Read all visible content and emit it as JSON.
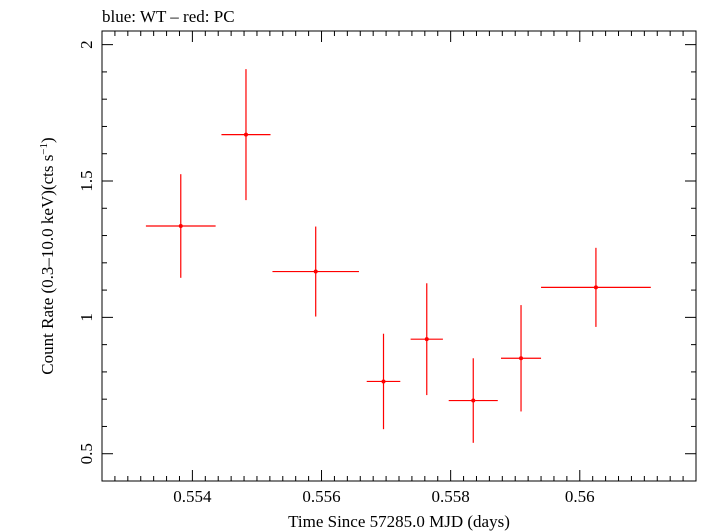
{
  "chart_data": {
    "type": "scatter",
    "title": "blue: WT – red: PC",
    "xlabel": "Time Since 57285.0 MJD (days)",
    "ylabel_main": "Count Rate (0.3–10.0 keV)(cts s",
    "ylabel_sup": "−1",
    "ylabel_tail": ")",
    "xlim": [
      0.5526,
      0.5618
    ],
    "ylim": [
      0.4,
      2.05
    ],
    "xticks": [
      {
        "value": 0.554,
        "label": "0.554"
      },
      {
        "value": 0.556,
        "label": "0.556"
      },
      {
        "value": 0.558,
        "label": "0.558"
      },
      {
        "value": 0.56,
        "label": "0.56"
      }
    ],
    "yticks": [
      {
        "value": 0.5,
        "label": "0.5"
      },
      {
        "value": 1.0,
        "label": "1"
      },
      {
        "value": 1.5,
        "label": "1.5"
      },
      {
        "value": 2.0,
        "label": "2"
      }
    ],
    "grid": false,
    "series": [
      {
        "color": "#ff0000",
        "points": [
          {
            "x": 0.55382,
            "xerr": 0.00054,
            "y": 1.335,
            "yerr": 0.19
          },
          {
            "x": 0.55483,
            "xerr": 0.00038,
            "y": 1.67,
            "yerr": 0.24
          },
          {
            "x": 0.55591,
            "xerr": 0.00067,
            "y": 1.168,
            "yerr": 0.165
          },
          {
            "x": 0.55696,
            "xerr": 0.00026,
            "y": 0.765,
            "yerr": 0.175
          },
          {
            "x": 0.55763,
            "xerr": 0.00025,
            "y": 0.92,
            "yerr": 0.205
          },
          {
            "x": 0.55835,
            "xerr": 0.00038,
            "y": 0.695,
            "yerr": 0.155
          },
          {
            "x": 0.55909,
            "xerr": 0.00031,
            "y": 0.85,
            "yerr": 0.195
          },
          {
            "x": 0.56025,
            "xerr": 0.00085,
            "y": 1.11,
            "yerr": 0.145
          }
        ]
      }
    ]
  }
}
